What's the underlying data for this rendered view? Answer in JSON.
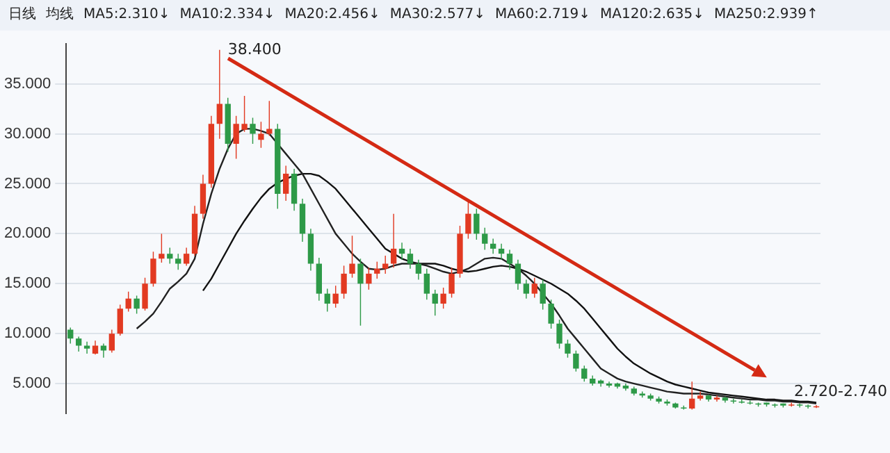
{
  "chart_data": {
    "type": "candlestick",
    "colors": [
      "#2e9a48",
      "#2e9a48",
      "#2e9a48",
      "#e23a22",
      "#2e9a48",
      "#e23a22",
      "#e23a22",
      "#e23a22",
      "#2e9a48",
      "#e23a22",
      "#e23a22",
      "#e23a22",
      "#2e9a48",
      "#2e9a48",
      "#e23a22",
      "#e23a22",
      "#e23a22",
      "#e23a22",
      "#e23a22",
      "#2e9a48",
      "#e23a22",
      "#e23a22",
      "#2e9a48",
      "#e23a22",
      "#e23a22",
      "#2e9a48",
      "#e23a22",
      "#2e9a48",
      "#2e9a48",
      "#2e9a48",
      "#2e9a48",
      "#2e9a48",
      "#e23a22",
      "#e23a22",
      "#e23a22",
      "#2e9a48",
      "#e23a22",
      "#e23a22",
      "#e23a22",
      "#e23a22",
      "#2e9a48",
      "#2e9a48",
      "#2e9a48",
      "#2e9a48",
      "#2e9a48",
      "#e23a22",
      "#e23a22",
      "#e23a22",
      "#e23a22",
      "#2e9a48",
      "#2e9a48",
      "#2e9a48",
      "#2e9a48",
      "#2e9a48",
      "#2e9a48",
      "#2e9a48",
      "#e23a22",
      "#2e9a48",
      "#2e9a48",
      "#2e9a48",
      "#2e9a48",
      "#2e9a48",
      "#2e9a48",
      "#2e9a48",
      "#2e9a48",
      "#2e9a48",
      "#2e9a48",
      "#2e9a48",
      "#2e9a48",
      "#2e9a48",
      "#2e9a48",
      "#2e9a48",
      "#2e9a48",
      "#2e9a48",
      "#2e9a48",
      "#e23a22",
      "#e23a22",
      "#2e9a48",
      "#e23a22",
      "#2e9a48",
      "#2e9a48",
      "#2e9a48",
      "#2e9a48",
      "#2e9a48",
      "#2e9a48",
      "#2e9a48",
      "#2e9a48",
      "#e23a22",
      "#2e9a48",
      "#2e9a48",
      "#e23a22"
    ],
    "categories": [
      null,
      null,
      null,
      null,
      null,
      null,
      null,
      null,
      null,
      null,
      null,
      null,
      null,
      null,
      null,
      null,
      null,
      null,
      null,
      null,
      null,
      null,
      null,
      null,
      null,
      null,
      null,
      null,
      null,
      null,
      null,
      null,
      null,
      null,
      null,
      null,
      null,
      null,
      null,
      null,
      null,
      null,
      null,
      null,
      null,
      null,
      null,
      null,
      null,
      null,
      null,
      null,
      null,
      null,
      null,
      null,
      null,
      null,
      null,
      null,
      null,
      null,
      null,
      null,
      null,
      null,
      null,
      null,
      null,
      null,
      null,
      null,
      null,
      null,
      null,
      null,
      null,
      null,
      null,
      null,
      null,
      null,
      null,
      null,
      null,
      null,
      null,
      null,
      null,
      null,
      null
    ],
    "ohlc": [
      [
        10.4,
        10.6,
        9.0,
        9.5
      ],
      [
        9.5,
        9.7,
        8.2,
        8.8
      ],
      [
        8.8,
        9.2,
        8.0,
        8.5
      ],
      [
        8.0,
        9.3,
        7.9,
        8.8
      ],
      [
        8.8,
        9.0,
        7.6,
        8.3
      ],
      [
        8.3,
        10.4,
        8.1,
        10
      ],
      [
        10,
        12.9,
        9.8,
        12.5
      ],
      [
        12.5,
        14.2,
        12.2,
        13.5
      ],
      [
        13.5,
        13.8,
        12,
        12.5
      ],
      [
        12.5,
        15.6,
        12.3,
        15
      ],
      [
        15,
        18.2,
        14.7,
        17.5
      ],
      [
        17.5,
        20,
        17.1,
        18
      ],
      [
        18,
        18.6,
        17,
        17.5
      ],
      [
        17.5,
        18,
        16.4,
        17
      ],
      [
        17,
        18.6,
        16.8,
        18
      ],
      [
        18,
        22.8,
        17.8,
        22
      ],
      [
        22,
        25.9,
        21.5,
        25
      ],
      [
        25,
        31.8,
        24.6,
        31
      ],
      [
        31,
        38.4,
        29.5,
        33
      ],
      [
        33,
        33.6,
        28.2,
        29
      ],
      [
        29,
        31.8,
        27.5,
        31
      ],
      [
        30.4,
        33.8,
        30.2,
        31
      ],
      [
        31,
        31.6,
        29,
        30
      ],
      [
        29.4,
        31.2,
        28.6,
        30
      ],
      [
        30,
        33.3,
        29.8,
        30.5
      ],
      [
        30.5,
        31,
        22.5,
        24
      ],
      [
        24,
        26.8,
        23.3,
        26
      ],
      [
        26,
        26.5,
        22.3,
        23
      ],
      [
        23,
        23.5,
        19.2,
        20
      ],
      [
        20,
        20.5,
        16.3,
        17
      ],
      [
        17,
        17.6,
        13.3,
        14
      ],
      [
        14,
        14.5,
        12.2,
        13
      ],
      [
        13,
        14.8,
        12.6,
        14
      ],
      [
        14,
        16.8,
        13.5,
        16
      ],
      [
        16,
        19.8,
        15.6,
        17
      ],
      [
        17,
        17.5,
        10.8,
        15
      ],
      [
        15,
        16.6,
        14.4,
        16
      ],
      [
        16,
        17.2,
        15.5,
        16.5
      ],
      [
        16.5,
        17.8,
        16,
        17
      ],
      [
        17,
        22,
        16.6,
        18.5
      ],
      [
        18.5,
        19.1,
        17.4,
        18
      ],
      [
        18,
        18.5,
        16.5,
        17
      ],
      [
        17,
        17.4,
        15.4,
        16
      ],
      [
        16,
        16.5,
        13.4,
        14
      ],
      [
        14,
        14.4,
        11.8,
        13
      ],
      [
        13,
        14.6,
        12.5,
        14
      ],
      [
        14,
        16.6,
        13.6,
        16
      ],
      [
        16,
        20.8,
        15.6,
        20
      ],
      [
        20,
        23.5,
        19.5,
        22
      ],
      [
        22,
        22.5,
        19.4,
        20
      ],
      [
        20,
        20.6,
        18.4,
        19
      ],
      [
        19,
        19.5,
        18,
        18.5
      ],
      [
        18.5,
        19,
        17.4,
        18
      ],
      [
        18,
        18.4,
        16.4,
        17
      ],
      [
        17,
        17.4,
        14.4,
        15
      ],
      [
        15,
        15.4,
        13.5,
        14
      ],
      [
        14,
        15.6,
        13.6,
        15
      ],
      [
        15,
        15.4,
        12.4,
        13
      ],
      [
        13,
        13.4,
        10.5,
        11
      ],
      [
        11,
        11.4,
        8.5,
        9
      ],
      [
        9,
        9.4,
        7.6,
        8
      ],
      [
        8,
        8.3,
        6.2,
        6.5
      ],
      [
        6.5,
        6.8,
        5.2,
        5.5
      ],
      [
        5.5,
        5.8,
        4.8,
        5
      ],
      [
        5.3,
        5.4,
        4.7,
        5
      ],
      [
        5,
        5.2,
        4.6,
        4.8
      ],
      [
        5.0,
        5.1,
        4.5,
        4.7
      ],
      [
        4.8,
        5,
        4.3,
        4.5
      ],
      [
        4.5,
        4.7,
        3.8,
        4
      ],
      [
        4,
        4.2,
        3.6,
        3.8
      ],
      [
        3.8,
        4,
        3.3,
        3.5
      ],
      [
        3.5,
        3.7,
        3,
        3.2
      ],
      [
        3.2,
        3.4,
        2.8,
        3
      ],
      [
        3,
        3.1,
        2.5,
        2.6
      ],
      [
        2.6,
        2.8,
        2.4,
        2.5
      ],
      [
        2.5,
        5.2,
        2.4,
        3.5
      ],
      [
        3.5,
        4.2,
        3.3,
        3.8
      ],
      [
        3.8,
        3.9,
        3.2,
        3.4
      ],
      [
        3.4,
        3.8,
        3.2,
        3.6
      ],
      [
        3.6,
        3.7,
        3.1,
        3.3
      ],
      [
        3.3,
        3.5,
        3.0,
        3.2
      ],
      [
        3.2,
        3.4,
        3,
        3.1
      ],
      [
        3.1,
        3.3,
        2.9,
        3
      ],
      [
        3,
        3.1,
        2.7,
        2.9
      ],
      [
        3.1,
        3.1,
        2.7,
        2.9
      ],
      [
        2.9,
        3,
        2.6,
        2.8
      ],
      [
        3.0,
        3,
        2.6,
        2.8
      ],
      [
        2.8,
        3.1,
        2.7,
        2.9
      ],
      [
        2.9,
        3,
        2.6,
        2.8
      ],
      [
        2.8,
        2.9,
        2.5,
        2.7
      ],
      [
        2.62,
        2.85,
        2.55,
        2.73
      ]
    ],
    "series": [
      {
        "type": "line",
        "color": "#222222",
        "values": [
          null,
          null,
          null,
          null,
          null,
          null,
          null,
          null,
          10.5,
          11.2,
          12,
          13.2,
          14.5,
          15.2,
          16,
          17.5,
          21,
          24,
          26.5,
          28.5,
          30,
          30.5,
          30.5,
          30.3,
          30,
          29,
          28,
          27,
          26,
          24.5,
          23,
          21.5,
          20,
          19,
          18,
          17.2,
          16.5,
          16.4,
          16.5,
          16.8,
          17,
          17,
          17,
          16.8,
          16.5,
          16.2,
          16,
          16.2,
          16.5,
          17,
          17.5,
          17.6,
          17.5,
          17,
          16.5,
          15.8,
          15,
          14,
          13,
          11.8,
          10.5,
          9.5,
          8.5,
          7.5,
          6.5,
          6,
          5.5,
          5.2,
          5,
          4.8,
          4.6,
          4.4,
          4.2,
          4.1,
          4,
          4,
          4,
          3.9,
          3.8,
          3.7,
          3.6,
          3.5,
          3.4,
          3.4,
          3.3,
          3.3,
          3.2,
          3.2,
          3.1,
          3.1,
          3
        ]
      },
      {
        "type": "line",
        "color": "#111111",
        "values": [
          null,
          null,
          null,
          null,
          null,
          null,
          null,
          null,
          null,
          null,
          null,
          null,
          null,
          null,
          null,
          null,
          14.3,
          15.5,
          17,
          18.5,
          20,
          21.3,
          22.5,
          23.6,
          24.5,
          25.1,
          25.5,
          25.8,
          26,
          26,
          25.8,
          25.2,
          24.5,
          23.5,
          22.5,
          21.5,
          20.5,
          19.5,
          18.5,
          18,
          17.5,
          17.2,
          17,
          17,
          17,
          16.8,
          16.5,
          16.3,
          16.2,
          16.3,
          16.5,
          16.7,
          16.8,
          16.7,
          16.5,
          16.2,
          15.8,
          15.4,
          15,
          14.5,
          14,
          13.3,
          12.5,
          11.5,
          10.5,
          9.5,
          8.5,
          7.7,
          7,
          6.5,
          6,
          5.6,
          5.2,
          4.9,
          4.7,
          4.5,
          4.3,
          4.1,
          4,
          3.9,
          3.8,
          3.7,
          3.6,
          3.5,
          3.4,
          3.4,
          3.3,
          3.3,
          3.2,
          3.2,
          3.1
        ]
      }
    ],
    "ylim": [
      2,
      39
    ],
    "yticks": [
      {
        "value": 5,
        "label": "5.000"
      },
      {
        "value": 10,
        "label": "10.000"
      },
      {
        "value": 15,
        "label": "15.000"
      },
      {
        "value": 20,
        "label": "20.000"
      },
      {
        "value": 25,
        "label": "25.000"
      },
      {
        "value": 30,
        "label": "30.000"
      },
      {
        "value": 35,
        "label": "35.000"
      }
    ],
    "grid": "y",
    "legend": false,
    "marker": "none",
    "line_style": "solid",
    "annotations": [
      "日线",
      "均线",
      "MA5:2.310↓",
      "MA10:2.334↓",
      "MA20:2.456↓",
      "MA30:2.577↓",
      "MA60:2.719↓",
      "MA120:2.635↓",
      "MA250:2.939↑",
      "38.400",
      "2.720-2.740"
    ]
  }
}
